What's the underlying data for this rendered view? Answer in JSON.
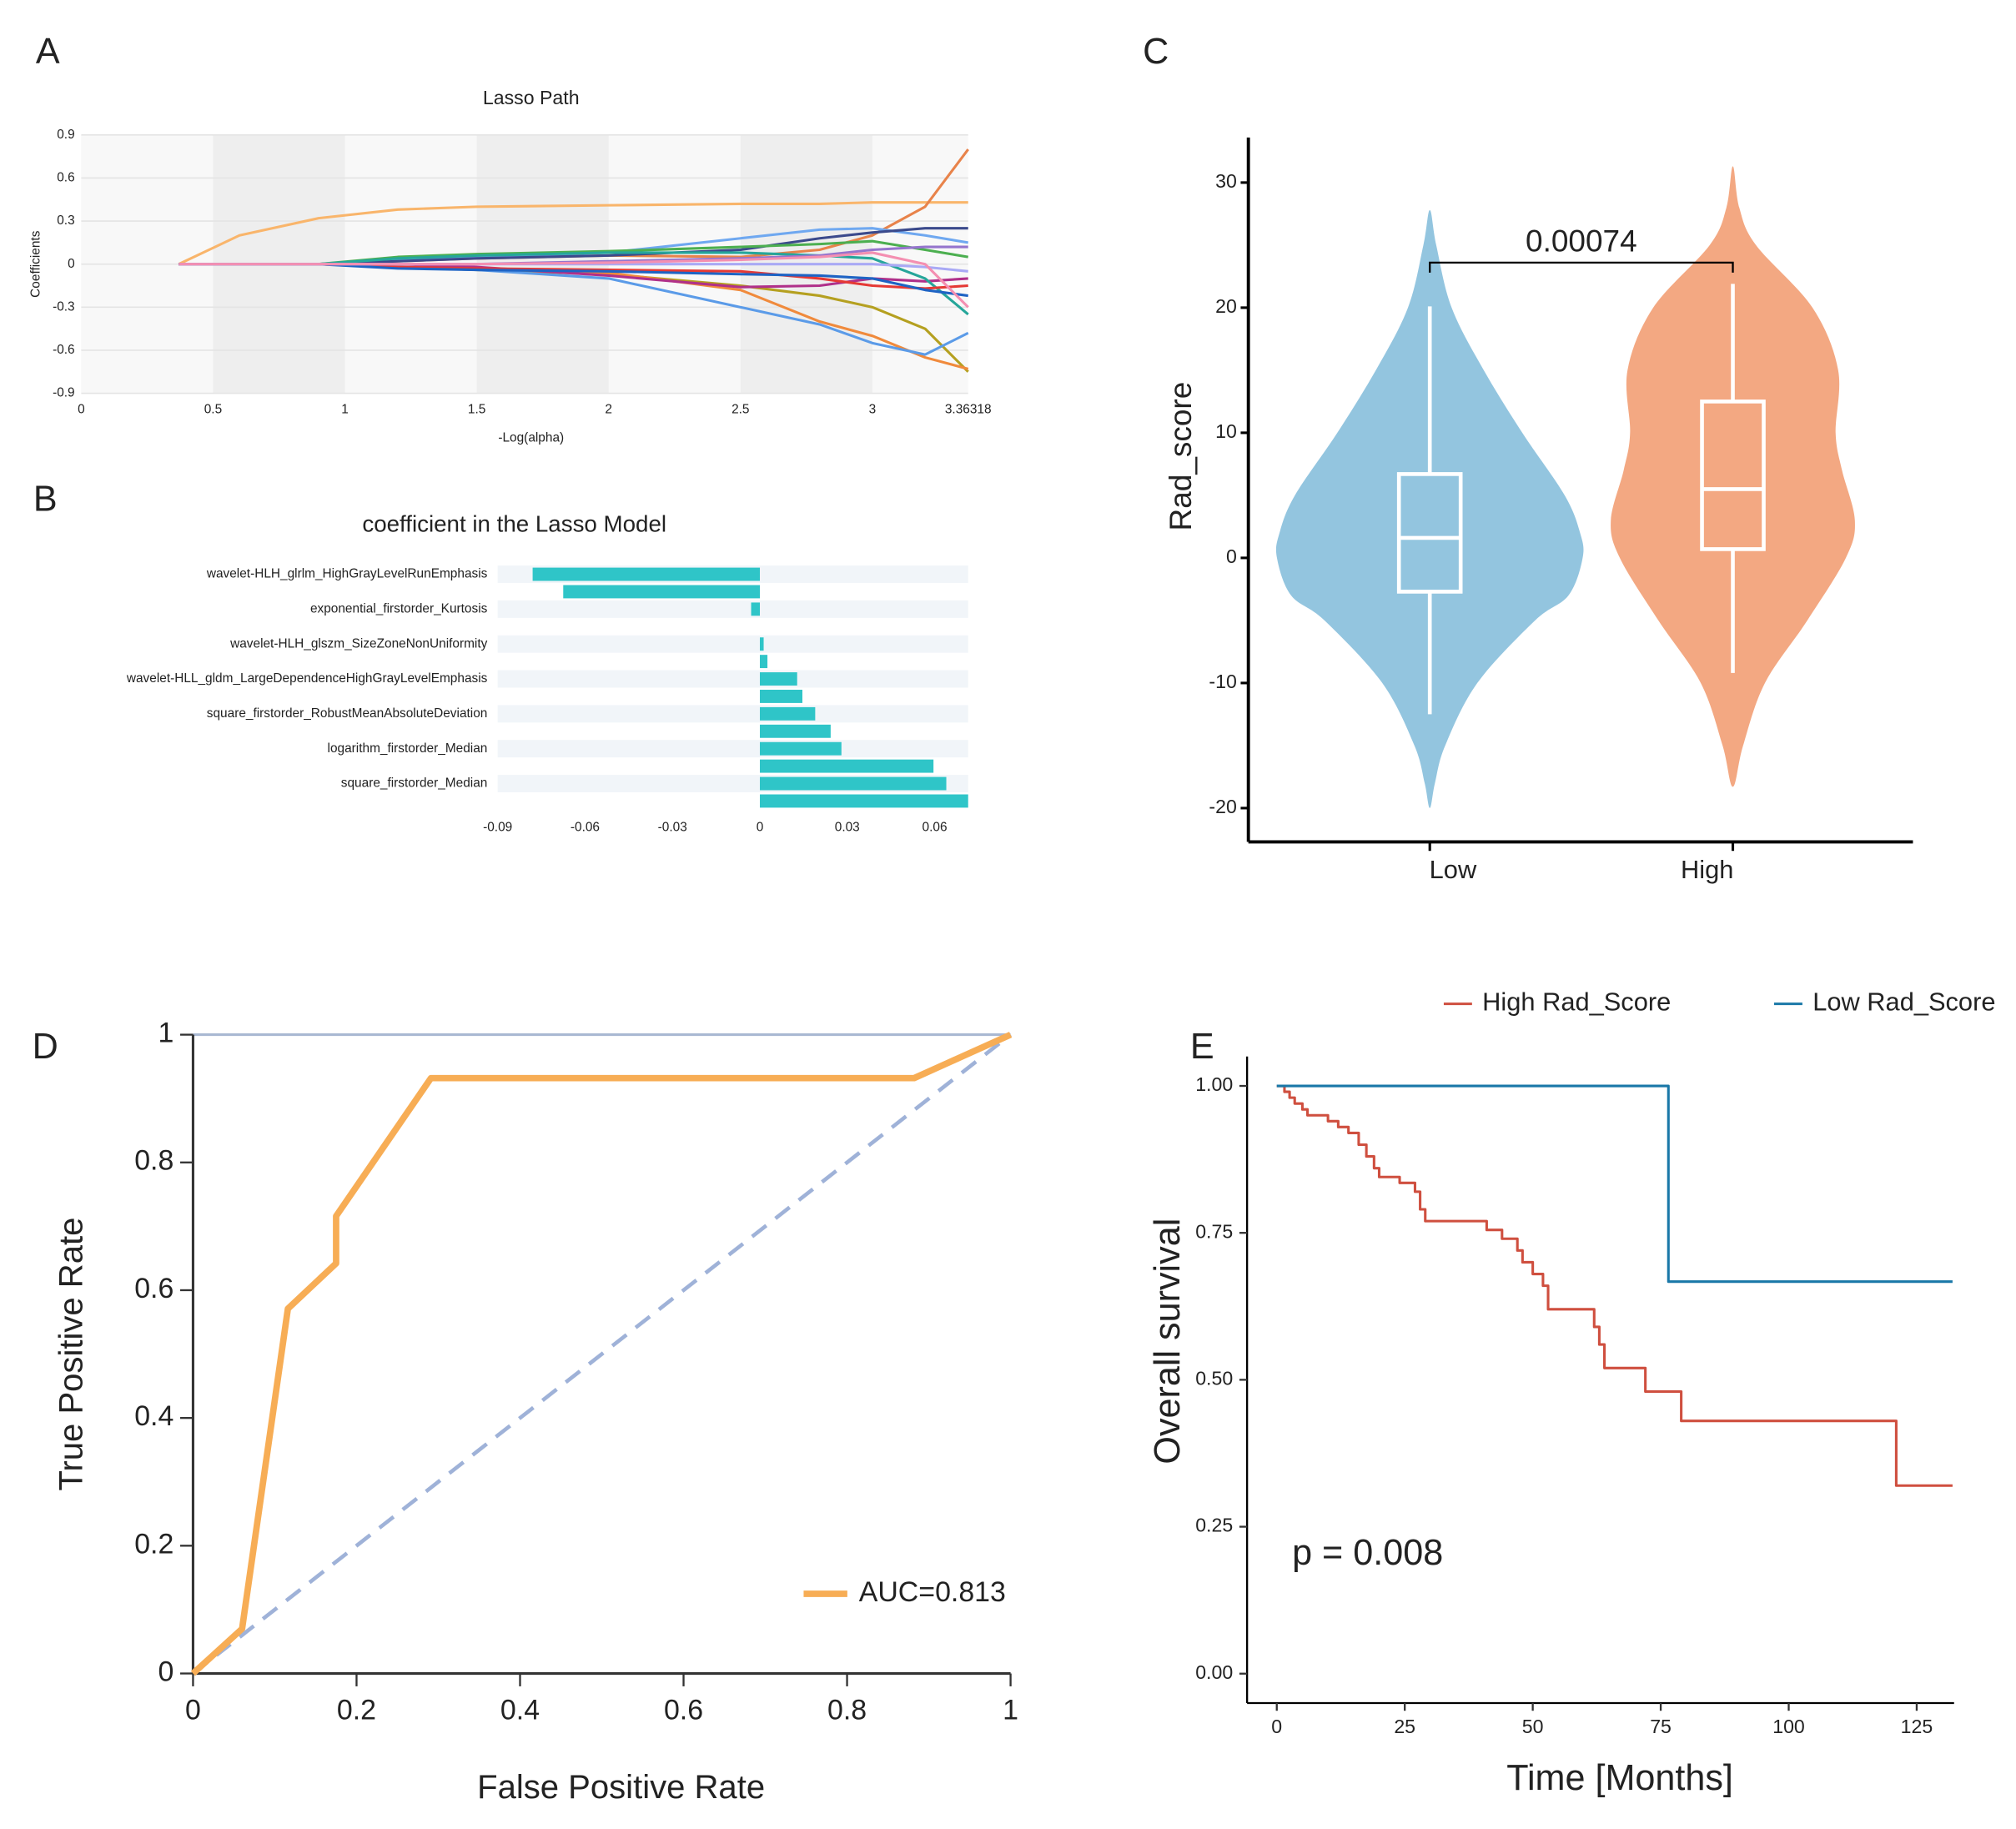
{
  "chart_data": [
    {
      "panel": "A",
      "type": "line",
      "title": "Lasso Path",
      "xlabel": "-Log(alpha)",
      "ylabel": "Coefficients",
      "x": [
        0.37,
        0.6,
        0.9,
        1.2,
        1.5,
        2,
        2.5,
        2.8,
        3,
        3.2,
        3.36318
      ],
      "xlim": [
        0,
        3.36318
      ],
      "ylim": [
        -0.9,
        0.9
      ],
      "xticks": [
        0,
        0.5,
        1,
        1.5,
        2,
        2.5,
        3,
        3.36318
      ],
      "yticks": [
        -0.9,
        -0.6,
        -0.3,
        0,
        0.3,
        0.6,
        0.9
      ],
      "grid": true,
      "series": [
        {
          "color": "#f9b56b",
          "values": [
            0,
            0.2,
            0.32,
            0.38,
            0.4,
            0.41,
            0.42,
            0.42,
            0.43,
            0.43,
            0.43
          ]
        },
        {
          "color": "#e8834a",
          "values": [
            0,
            0,
            0,
            0.02,
            0.04,
            0.06,
            0.05,
            0.1,
            0.2,
            0.4,
            0.8
          ]
        },
        {
          "color": "#6fa8f0",
          "values": [
            0,
            0,
            0,
            0.03,
            0.05,
            0.08,
            0.18,
            0.24,
            0.25,
            0.2,
            0.15
          ]
        },
        {
          "color": "#3b4a8c",
          "values": [
            0,
            0,
            0,
            0.02,
            0.04,
            0.06,
            0.1,
            0.18,
            0.22,
            0.25,
            0.25
          ]
        },
        {
          "color": "#b5a020",
          "values": [
            0,
            0,
            0,
            -0.02,
            -0.04,
            -0.07,
            -0.15,
            -0.22,
            -0.3,
            -0.45,
            -0.75
          ]
        },
        {
          "color": "#f08a3c",
          "values": [
            0,
            0,
            0,
            -0.02,
            -0.03,
            -0.06,
            -0.18,
            -0.4,
            -0.5,
            -0.65,
            -0.73
          ]
        },
        {
          "color": "#5b9be8",
          "values": [
            0,
            0,
            0,
            -0.02,
            -0.04,
            -0.1,
            -0.3,
            -0.42,
            -0.55,
            -0.63,
            -0.48
          ]
        },
        {
          "color": "#b0308a",
          "values": [
            0,
            0,
            0,
            0,
            -0.02,
            -0.08,
            -0.16,
            -0.15,
            -0.1,
            -0.12,
            -0.1
          ]
        },
        {
          "color": "#4caf50",
          "values": [
            0,
            0,
            0,
            0.05,
            0.07,
            0.09,
            0.12,
            0.14,
            0.16,
            0.1,
            0.05
          ]
        },
        {
          "color": "#26a69a",
          "values": [
            0,
            0,
            0,
            0.04,
            0.06,
            0.08,
            0.08,
            0.06,
            0.04,
            -0.1,
            -0.35
          ]
        },
        {
          "color": "#e53935",
          "values": [
            0,
            0,
            0,
            -0.02,
            -0.03,
            -0.04,
            -0.05,
            -0.1,
            -0.15,
            -0.17,
            -0.15
          ]
        },
        {
          "color": "#9575cd",
          "values": [
            0,
            0,
            0,
            0,
            0,
            0.02,
            0.04,
            0.06,
            0.1,
            0.12,
            0.12
          ]
        },
        {
          "color": "#1e63c4",
          "values": [
            0,
            0,
            0,
            -0.03,
            -0.04,
            -0.05,
            -0.07,
            -0.08,
            -0.1,
            -0.18,
            -0.22
          ]
        },
        {
          "color": "#a9a9f5",
          "values": [
            0,
            0,
            0,
            0,
            0,
            0,
            0,
            0,
            0,
            -0.02,
            -0.05
          ]
        },
        {
          "color": "#f48fb1",
          "values": [
            0,
            0,
            0,
            0,
            0,
            0.01,
            0.03,
            0.05,
            0.08,
            0,
            -0.3
          ]
        }
      ]
    },
    {
      "panel": "B",
      "type": "bar",
      "orientation": "horizontal",
      "title": "coefficient in the Lasso Model",
      "categories": [
        "wavelet-HLH_glrlm_HighGrayLevelRunEmphasis",
        null,
        "exponential_firstorder_Kurtosis",
        null,
        "wavelet-HLH_glszm_SizeZoneNonUniformity",
        null,
        "wavelet-HLL_gldm_LargeDependenceHighGrayLevelEmphasis",
        null,
        "square_firstorder_RobustMeanAbsoluteDeviation",
        null,
        "logarithm_firstorder_Median",
        null,
        "square_firstorder_Median",
        null
      ],
      "values": [
        -0.078,
        -0.0675,
        -0.003,
        0,
        0.0013,
        0.0026,
        0.0128,
        0.0146,
        0.019,
        0.0243,
        0.028,
        0.0596,
        0.064,
        0.0715
      ],
      "color": "#2fc5c8",
      "xlim": [
        -0.09,
        0.0715
      ],
      "xticks": [
        -0.09,
        -0.06,
        -0.03,
        0,
        0.03,
        0.06
      ]
    },
    {
      "panel": "C",
      "type": "violin",
      "ylabel": "Rad_score",
      "categories": [
        "Low",
        "High"
      ],
      "ylim": [
        -22.7,
        33.6
      ],
      "yticks": [
        -20,
        -10,
        0,
        10,
        20,
        30
      ],
      "groups": [
        {
          "color": "#93c5df",
          "min": -12.5,
          "q1": -2.7,
          "median": 1.6,
          "q3": 6.7,
          "max": 20.1,
          "density_y": [
            27.8,
            25,
            20,
            15,
            10,
            5,
            2,
            0,
            -3,
            -5,
            -10,
            -15,
            -18,
            -20
          ],
          "density": [
            0,
            5,
            17,
            42,
            72,
            105,
            117,
            119,
            108,
            82,
            37,
            12,
            4,
            0
          ]
        },
        {
          "color": "#f3a882",
          "min": -9.2,
          "q1": 0.7,
          "median": 5.5,
          "q3": 12.5,
          "max": 21.9,
          "density_y": [
            31.3,
            28,
            25,
            20,
            15,
            10,
            7,
            3,
            0,
            -5,
            -10,
            -15,
            -18.3
          ],
          "density": [
            0,
            5,
            18,
            62,
            82,
            80,
            85,
            95,
            88,
            58,
            25,
            8,
            0
          ]
        }
      ],
      "bracket": {
        "label": "0.00074",
        "y": 23.6,
        "y_low": 22.8
      }
    },
    {
      "panel": "D",
      "type": "line",
      "xlabel": "False Positive Rate",
      "ylabel": "True Positive Rate",
      "xlim": [
        0,
        1
      ],
      "ylim": [
        0,
        1
      ],
      "xticks": [
        0,
        0.2,
        0.4,
        0.6,
        0.8,
        1
      ],
      "yticks": [
        0,
        0.2,
        0.4,
        0.6,
        0.8,
        1
      ],
      "diagonal": true,
      "legend": "lower right",
      "series": [
        {
          "name": "AUC=0.813",
          "color": "#f7ad55",
          "x": [
            0,
            0.06,
            0.116,
            0.175,
            0.175,
            0.291,
            0.882,
            1
          ],
          "values": [
            0,
            0.07,
            0.571,
            0.642,
            0.716,
            0.932,
            0.932,
            1
          ]
        }
      ]
    },
    {
      "panel": "E",
      "type": "line",
      "xlabel": "Time [Months]",
      "ylabel": "Overall survival",
      "annotation": "p = 0.008",
      "xlim": [
        -5.8,
        132.3
      ],
      "ylim": [
        -0.05,
        1.05
      ],
      "xticks": [
        0,
        25,
        50,
        75,
        100,
        125
      ],
      "yticks": [
        {
          "value": 0,
          "label": "0.00"
        },
        {
          "value": 0.25,
          "label": "0.25"
        },
        {
          "value": 0.5,
          "label": "0.50"
        },
        {
          "value": 0.75,
          "label": "0.75"
        },
        {
          "value": 1,
          "label": "1.00"
        }
      ],
      "legend": "top",
      "series": [
        {
          "name": "High Rad_Score",
          "color": "#cf4f3f",
          "x": [
            0,
            1.5,
            1.5,
            2.5,
            2.5,
            3.5,
            3.5,
            5,
            5,
            6,
            6,
            10,
            10,
            12,
            12,
            14,
            14,
            16,
            16,
            17.5,
            17.5,
            19,
            19,
            20,
            20,
            24,
            24,
            27,
            27,
            28,
            28,
            29,
            29,
            41,
            41,
            44,
            44,
            47,
            47,
            48,
            48,
            50,
            50,
            52,
            52,
            53,
            53,
            62,
            62,
            63,
            63,
            64,
            64,
            72,
            72,
            79,
            79,
            121,
            121,
            132
          ],
          "values": [
            1,
            1,
            0.99,
            0.99,
            0.98,
            0.98,
            0.97,
            0.97,
            0.96,
            0.96,
            0.95,
            0.95,
            0.94,
            0.94,
            0.93,
            0.93,
            0.92,
            0.92,
            0.9,
            0.9,
            0.88,
            0.88,
            0.86,
            0.86,
            0.845,
            0.845,
            0.835,
            0.835,
            0.82,
            0.82,
            0.79,
            0.79,
            0.77,
            0.77,
            0.755,
            0.755,
            0.74,
            0.74,
            0.72,
            0.72,
            0.7,
            0.7,
            0.68,
            0.68,
            0.66,
            0.66,
            0.62,
            0.62,
            0.59,
            0.59,
            0.56,
            0.56,
            0.52,
            0.52,
            0.48,
            0.48,
            0.43,
            0.43,
            0.32,
            0.32
          ]
        },
        {
          "name": "Low Rad_Score",
          "color": "#1a78a8",
          "x": [
            0,
            76.5,
            76.5,
            132
          ],
          "values": [
            1,
            1,
            0.667,
            0.667
          ]
        }
      ]
    }
  ]
}
